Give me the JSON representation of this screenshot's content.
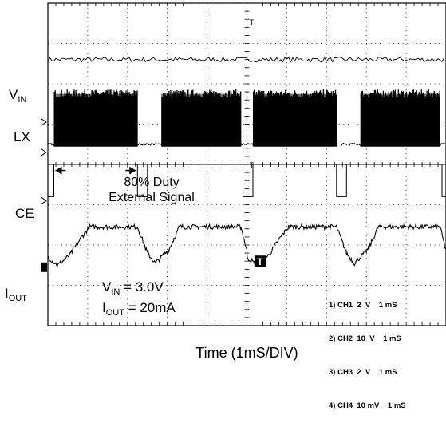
{
  "chart_data": {
    "type": "line",
    "title": "",
    "xlabel": "Time (1mS/DIV)",
    "ylabel": "",
    "divisions": {
      "x": 10,
      "y": 8
    },
    "x_unit": "ms",
    "grid": true,
    "series": [
      {
        "name": "VIN",
        "label_main": "V",
        "label_sub": "IN",
        "channel": "CH1",
        "points": [
          [
            0,
            6.6
          ],
          [
            10,
            6.6
          ]
        ],
        "style": "flat-noisy"
      },
      {
        "name": "LX",
        "label_main": "LX",
        "label_sub": "",
        "channel": "CH2",
        "low_level": 4.5,
        "high_level": 5.75,
        "bursts": [
          [
            0.15,
            2.25
          ],
          [
            2.85,
            4.85
          ]
        ],
        "style": "switching"
      },
      {
        "name": "CE",
        "label_main": "CE",
        "label_sub": "",
        "channel": "CH3",
        "points": [
          [
            0,
            3.2
          ],
          [
            0.15,
            3.2
          ],
          [
            0.15,
            4.0
          ],
          [
            2.25,
            4.0
          ],
          [
            2.25,
            3.2
          ],
          [
            2.5,
            3.2
          ],
          [
            2.5,
            4.0
          ],
          [
            4.9,
            4.0
          ],
          [
            4.9,
            3.2
          ],
          [
            5,
            3.2
          ]
        ],
        "style": "digital"
      },
      {
        "name": "IOUT",
        "label_main": "I",
        "label_sub": "OUT",
        "channel": "CH4",
        "points": [
          [
            0,
            1.7
          ],
          [
            0.25,
            1.5
          ],
          [
            0.55,
            1.75
          ],
          [
            0.85,
            2.2
          ],
          [
            1.05,
            2.45
          ],
          [
            2.25,
            2.45
          ],
          [
            2.5,
            1.8
          ],
          [
            2.7,
            1.55
          ],
          [
            3.05,
            1.9
          ],
          [
            3.3,
            2.45
          ],
          [
            4.85,
            2.45
          ],
          [
            5,
            1.85
          ]
        ],
        "style": "analog-noisy"
      }
    ],
    "annotations": {
      "duty_line1": "80% Duty",
      "duty_line2": "External Signal",
      "cond_v_main": "V",
      "cond_v_sub": "IN",
      "cond_v_value": " = 3.0V",
      "cond_i_main": "I",
      "cond_i_sub": "OUT",
      "cond_i_value": " = 20mA",
      "marker_letter": "T"
    },
    "measurements": [
      "1) CH1  2  V    1 mS",
      "2) CH2  10  V    1 mS",
      "3) CH3  2  V    1 mS",
      "4) CH4  10 mV    1 mS"
    ]
  }
}
